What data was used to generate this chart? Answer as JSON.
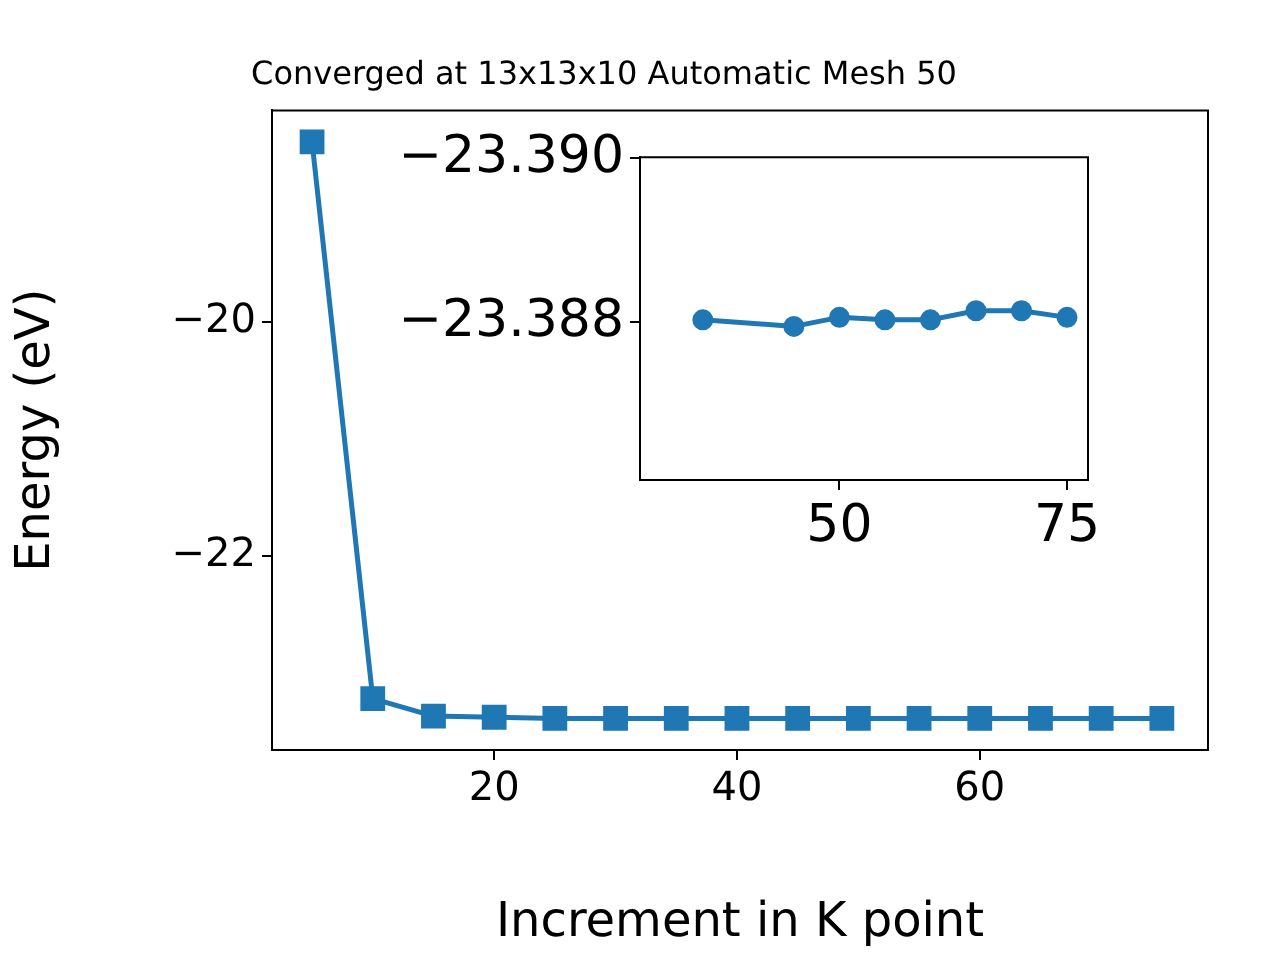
{
  "chart_data": [
    {
      "type": "line",
      "title": "Converged at 13x13x10 Automatic Mesh 50",
      "xlabel": "Increment in K point",
      "ylabel": "Energy (eV)",
      "x": [
        5,
        10,
        15,
        20,
        25,
        30,
        35,
        40,
        45,
        50,
        55,
        60,
        65,
        70,
        75
      ],
      "series": [
        {
          "color": "#1f77b4",
          "values": [
            -18.46,
            -23.22,
            -23.37,
            -23.38,
            -23.39,
            -23.39,
            -23.39,
            -23.39,
            -23.39,
            -23.39,
            -23.39,
            -23.39,
            -23.39,
            -23.39,
            -23.39
          ]
        }
      ],
      "xlim": [
        1.7,
        78.8
      ],
      "ylim": [
        -23.66,
        -18.19
      ],
      "xticks": [
        20,
        40,
        60
      ],
      "yticks": [
        {
          "value": -20,
          "label": "−20"
        },
        {
          "value": -22,
          "label": "−22"
        }
      ],
      "marker": "square",
      "grid": false,
      "legend": false
    },
    {
      "type": "line",
      "x": [
        35,
        45,
        50,
        55,
        60,
        65,
        70,
        75
      ],
      "series": [
        {
          "color": "#1f77b4",
          "values": [
            -23.38803,
            -23.38795,
            -23.38806,
            -23.38803,
            -23.38803,
            -23.38814,
            -23.38814,
            -23.38806
          ]
        }
      ],
      "xlim": [
        28.1,
        77.3
      ],
      "ylim": [
        -23.38608,
        -23.39001
      ],
      "xticks": [
        50,
        75
      ],
      "yticks": [
        {
          "value": -23.39,
          "label": "−23.390"
        },
        {
          "value": -23.388,
          "label": "−23.388"
        }
      ],
      "marker": "circle",
      "grid": false,
      "legend": false
    }
  ]
}
